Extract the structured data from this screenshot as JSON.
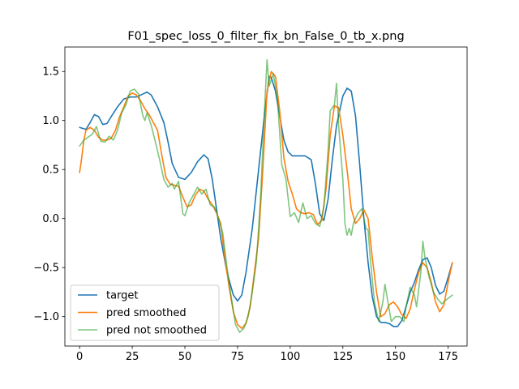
{
  "chart_data": {
    "type": "line",
    "title": "F01_spec_loss_0_filter_fix_bn_False_0_tb_x.png",
    "xlabel": "",
    "ylabel": "",
    "xlim": [
      -7,
      184
    ],
    "ylim": [
      -1.3,
      1.75
    ],
    "xticks": [
      0,
      25,
      50,
      75,
      100,
      125,
      150,
      175
    ],
    "yticks": [
      -1.0,
      -0.5,
      0.0,
      0.5,
      1.0,
      1.5
    ],
    "ytick_labels": [
      "−1.0",
      "−0.5",
      "0.0",
      "0.5",
      "1.0",
      "1.5"
    ],
    "grid": false,
    "legend_position": "lower-left",
    "series": [
      {
        "name": "target",
        "color": "#1f77b4",
        "width": 1.6,
        "opacity": 1,
        "points": [
          [
            0,
            0.93
          ],
          [
            3,
            0.91
          ],
          [
            5,
            0.98
          ],
          [
            7,
            1.06
          ],
          [
            9,
            1.04
          ],
          [
            11,
            0.96
          ],
          [
            13,
            0.97
          ],
          [
            15,
            1.04
          ],
          [
            18,
            1.14
          ],
          [
            21,
            1.22
          ],
          [
            24,
            1.24
          ],
          [
            27,
            1.24
          ],
          [
            30,
            1.27
          ],
          [
            32,
            1.29
          ],
          [
            34,
            1.26
          ],
          [
            37,
            1.14
          ],
          [
            40,
            0.98
          ],
          [
            42,
            0.78
          ],
          [
            44,
            0.56
          ],
          [
            47,
            0.42
          ],
          [
            50,
            0.4
          ],
          [
            53,
            0.47
          ],
          [
            56,
            0.58
          ],
          [
            59,
            0.65
          ],
          [
            61,
            0.61
          ],
          [
            63,
            0.4
          ],
          [
            65,
            0.1
          ],
          [
            67,
            -0.2
          ],
          [
            70,
            -0.55
          ],
          [
            73,
            -0.78
          ],
          [
            75,
            -0.84
          ],
          [
            77,
            -0.78
          ],
          [
            79,
            -0.55
          ],
          [
            82,
            -0.1
          ],
          [
            85,
            0.5
          ],
          [
            88,
            1.1
          ],
          [
            90,
            1.45
          ],
          [
            91,
            1.44
          ],
          [
            93,
            1.3
          ],
          [
            95,
            1.05
          ],
          [
            97,
            0.8
          ],
          [
            99,
            0.68
          ],
          [
            101,
            0.64
          ],
          [
            104,
            0.64
          ],
          [
            107,
            0.64
          ],
          [
            110,
            0.6
          ],
          [
            112,
            0.35
          ],
          [
            114,
            0.05
          ],
          [
            116,
            -0.02
          ],
          [
            118,
            0.2
          ],
          [
            120,
            0.6
          ],
          [
            122,
            0.95
          ],
          [
            125,
            1.25
          ],
          [
            127,
            1.33
          ],
          [
            129,
            1.3
          ],
          [
            131,
            1.05
          ],
          [
            133,
            0.55
          ],
          [
            135,
            0.0
          ],
          [
            137,
            -0.45
          ],
          [
            139,
            -0.8
          ],
          [
            141,
            -1.0
          ],
          [
            143,
            -1.06
          ],
          [
            145,
            -1.06
          ],
          [
            147,
            -1.07
          ],
          [
            149,
            -1.1
          ],
          [
            151,
            -1.1
          ],
          [
            153,
            -1.04
          ],
          [
            155,
            -0.9
          ],
          [
            157,
            -0.75
          ],
          [
            159,
            -0.65
          ],
          [
            161,
            -0.52
          ],
          [
            163,
            -0.42
          ],
          [
            165,
            -0.4
          ],
          [
            167,
            -0.5
          ],
          [
            169,
            -0.68
          ],
          [
            171,
            -0.77
          ],
          [
            173,
            -0.74
          ],
          [
            175,
            -0.6
          ],
          [
            177,
            -0.45
          ]
        ]
      },
      {
        "name": "pred smoothed",
        "color": "#ff7f0e",
        "width": 1.6,
        "opacity": 1,
        "points": [
          [
            0,
            0.47
          ],
          [
            1,
            0.62
          ],
          [
            2,
            0.8
          ],
          [
            3,
            0.9
          ],
          [
            5,
            0.93
          ],
          [
            7,
            0.9
          ],
          [
            9,
            0.83
          ],
          [
            11,
            0.8
          ],
          [
            13,
            0.8
          ],
          [
            15,
            0.82
          ],
          [
            17,
            0.9
          ],
          [
            19,
            1.04
          ],
          [
            21,
            1.14
          ],
          [
            23,
            1.25
          ],
          [
            25,
            1.28
          ],
          [
            27,
            1.26
          ],
          [
            29,
            1.2
          ],
          [
            31,
            1.12
          ],
          [
            33,
            1.06
          ],
          [
            35,
            0.98
          ],
          [
            37,
            0.9
          ],
          [
            39,
            0.65
          ],
          [
            41,
            0.42
          ],
          [
            43,
            0.35
          ],
          [
            45,
            0.34
          ],
          [
            47,
            0.33
          ],
          [
            49,
            0.22
          ],
          [
            51,
            0.12
          ],
          [
            53,
            0.14
          ],
          [
            55,
            0.24
          ],
          [
            57,
            0.3
          ],
          [
            59,
            0.28
          ],
          [
            61,
            0.2
          ],
          [
            63,
            0.14
          ],
          [
            65,
            0.06
          ],
          [
            67,
            -0.05
          ],
          [
            69,
            -0.4
          ],
          [
            71,
            -0.7
          ],
          [
            73,
            -0.95
          ],
          [
            75,
            -1.08
          ],
          [
            77,
            -1.12
          ],
          [
            79,
            -1.07
          ],
          [
            81,
            -0.9
          ],
          [
            83,
            -0.55
          ],
          [
            85,
            -0.2
          ],
          [
            87,
            0.5
          ],
          [
            89,
            1.3
          ],
          [
            91,
            1.5
          ],
          [
            93,
            1.45
          ],
          [
            95,
            1.1
          ],
          [
            97,
            0.62
          ],
          [
            99,
            0.38
          ],
          [
            101,
            0.25
          ],
          [
            103,
            0.1
          ],
          [
            105,
            0.06
          ],
          [
            107,
            0.05
          ],
          [
            109,
            0.06
          ],
          [
            111,
            0.04
          ],
          [
            113,
            -0.06
          ],
          [
            115,
            -0.02
          ],
          [
            117,
            0.3
          ],
          [
            119,
            0.85
          ],
          [
            121,
            1.15
          ],
          [
            123,
            1.13
          ],
          [
            125,
            0.85
          ],
          [
            127,
            0.5
          ],
          [
            129,
            0.1
          ],
          [
            131,
            -0.05
          ],
          [
            133,
            0.0
          ],
          [
            135,
            0.09
          ],
          [
            137,
            0.0
          ],
          [
            139,
            -0.4
          ],
          [
            141,
            -0.75
          ],
          [
            143,
            -1.0
          ],
          [
            145,
            -0.97
          ],
          [
            147,
            -0.88
          ],
          [
            149,
            -0.85
          ],
          [
            151,
            -0.9
          ],
          [
            153,
            -0.98
          ],
          [
            155,
            -1.02
          ],
          [
            157,
            -0.92
          ],
          [
            159,
            -0.72
          ],
          [
            161,
            -0.55
          ],
          [
            163,
            -0.45
          ],
          [
            165,
            -0.5
          ],
          [
            167,
            -0.65
          ],
          [
            169,
            -0.85
          ],
          [
            171,
            -0.95
          ],
          [
            173,
            -0.88
          ],
          [
            175,
            -0.65
          ],
          [
            177,
            -0.45
          ]
        ]
      },
      {
        "name": "pred not smoothed",
        "color": "#2ca02c",
        "width": 1.6,
        "opacity": 0.6,
        "points": [
          [
            0,
            0.74
          ],
          [
            2,
            0.8
          ],
          [
            4,
            0.83
          ],
          [
            6,
            0.86
          ],
          [
            8,
            0.94
          ],
          [
            10,
            0.79
          ],
          [
            12,
            0.78
          ],
          [
            14,
            0.84
          ],
          [
            16,
            0.8
          ],
          [
            18,
            0.9
          ],
          [
            20,
            1.08
          ],
          [
            22,
            1.16
          ],
          [
            24,
            1.3
          ],
          [
            26,
            1.32
          ],
          [
            28,
            1.27
          ],
          [
            30,
            1.05
          ],
          [
            31,
            1.0
          ],
          [
            32,
            1.08
          ],
          [
            34,
            0.95
          ],
          [
            36,
            0.78
          ],
          [
            38,
            0.6
          ],
          [
            40,
            0.4
          ],
          [
            42,
            0.32
          ],
          [
            44,
            0.36
          ],
          [
            45,
            0.3
          ],
          [
            47,
            0.38
          ],
          [
            49,
            0.05
          ],
          [
            50,
            0.03
          ],
          [
            52,
            0.16
          ],
          [
            54,
            0.24
          ],
          [
            56,
            0.32
          ],
          [
            58,
            0.25
          ],
          [
            60,
            0.3
          ],
          [
            62,
            0.14
          ],
          [
            64,
            0.12
          ],
          [
            66,
            0.0
          ],
          [
            68,
            -0.15
          ],
          [
            70,
            -0.5
          ],
          [
            72,
            -0.8
          ],
          [
            74,
            -1.08
          ],
          [
            76,
            -1.16
          ],
          [
            78,
            -1.12
          ],
          [
            80,
            -1.0
          ],
          [
            82,
            -0.75
          ],
          [
            84,
            -0.43
          ],
          [
            86,
            0.25
          ],
          [
            88,
            1.2
          ],
          [
            89,
            1.62
          ],
          [
            90,
            1.35
          ],
          [
            92,
            1.48
          ],
          [
            94,
            1.2
          ],
          [
            96,
            0.55
          ],
          [
            98,
            0.4
          ],
          [
            100,
            0.02
          ],
          [
            102,
            0.06
          ],
          [
            104,
            -0.04
          ],
          [
            106,
            0.16
          ],
          [
            108,
            0.0
          ],
          [
            110,
            0.03
          ],
          [
            112,
            -0.05
          ],
          [
            114,
            -0.08
          ],
          [
            116,
            0.12
          ],
          [
            118,
            0.7
          ],
          [
            119,
            1.1
          ],
          [
            121,
            1.16
          ],
          [
            122,
            1.38
          ],
          [
            123,
            0.95
          ],
          [
            125,
            0.4
          ],
          [
            126,
            -0.05
          ],
          [
            127,
            -0.17
          ],
          [
            128,
            -0.1
          ],
          [
            129,
            -0.17
          ],
          [
            130,
            -0.05
          ],
          [
            132,
            0.05
          ],
          [
            134,
            0.1
          ],
          [
            136,
            -0.1
          ],
          [
            137,
            -0.12
          ],
          [
            138,
            -0.4
          ],
          [
            140,
            -0.85
          ],
          [
            142,
            -1.05
          ],
          [
            144,
            -0.85
          ],
          [
            145,
            -0.67
          ],
          [
            146,
            -0.8
          ],
          [
            148,
            -1.05
          ],
          [
            150,
            -1.0
          ],
          [
            152,
            -1.0
          ],
          [
            154,
            -1.05
          ],
          [
            155,
            -0.9
          ],
          [
            157,
            -0.7
          ],
          [
            159,
            -0.78
          ],
          [
            160,
            -0.9
          ],
          [
            162,
            -0.55
          ],
          [
            163,
            -0.23
          ],
          [
            164,
            -0.4
          ],
          [
            166,
            -0.6
          ],
          [
            168,
            -0.75
          ],
          [
            170,
            -0.82
          ],
          [
            172,
            -0.87
          ],
          [
            174,
            -0.83
          ],
          [
            177,
            -0.78
          ]
        ]
      }
    ]
  }
}
